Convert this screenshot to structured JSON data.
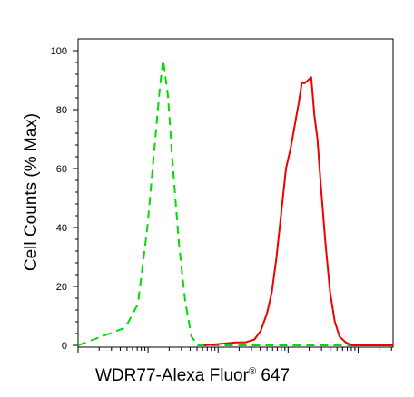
{
  "chart_data": {
    "type": "line",
    "title": "",
    "xlabel": "WDR77-Alexa Fluor",
    "xlabel_superscript": "®",
    "xlabel_suffix": " 647",
    "ylabel": "Cell Counts (% Max)",
    "x_scale": "log",
    "x_tick_labels": [],
    "ylim": [
      0,
      100
    ],
    "y_ticks": [
      0,
      20,
      40,
      60,
      80,
      100
    ],
    "y_tick_labels": [
      "0",
      "20",
      "40",
      "60",
      "80",
      "100"
    ],
    "grid": false,
    "legend": "none",
    "series": [
      {
        "color": "#00dd00",
        "style": "dashed",
        "points": [
          [
            0,
            0
          ],
          [
            0.05,
            2
          ],
          [
            0.1,
            4
          ],
          [
            0.15,
            6
          ],
          [
            0.19,
            14
          ],
          [
            0.22,
            40
          ],
          [
            0.245,
            70
          ],
          [
            0.26,
            88
          ],
          [
            0.27,
            97
          ],
          [
            0.285,
            85
          ],
          [
            0.3,
            62
          ],
          [
            0.32,
            35
          ],
          [
            0.34,
            15
          ],
          [
            0.36,
            3
          ],
          [
            0.38,
            0
          ],
          [
            0.45,
            0
          ],
          [
            1.0,
            0
          ]
        ]
      },
      {
        "color": "#ee0000",
        "style": "solid",
        "points": [
          [
            0.4,
            0
          ],
          [
            0.45,
            0.5
          ],
          [
            0.5,
            1
          ],
          [
            0.53,
            1
          ],
          [
            0.56,
            2
          ],
          [
            0.58,
            5
          ],
          [
            0.6,
            11
          ],
          [
            0.615,
            18
          ],
          [
            0.63,
            30
          ],
          [
            0.645,
            45
          ],
          [
            0.66,
            60
          ],
          [
            0.675,
            67
          ],
          [
            0.69,
            76
          ],
          [
            0.7,
            82
          ],
          [
            0.71,
            89
          ],
          [
            0.72,
            89
          ],
          [
            0.73,
            90
          ],
          [
            0.74,
            91
          ],
          [
            0.75,
            78
          ],
          [
            0.76,
            70
          ],
          [
            0.77,
            55
          ],
          [
            0.785,
            35
          ],
          [
            0.8,
            18
          ],
          [
            0.815,
            8
          ],
          [
            0.83,
            3
          ],
          [
            0.85,
            1
          ],
          [
            0.87,
            0
          ],
          [
            1.0,
            0
          ]
        ]
      }
    ]
  }
}
